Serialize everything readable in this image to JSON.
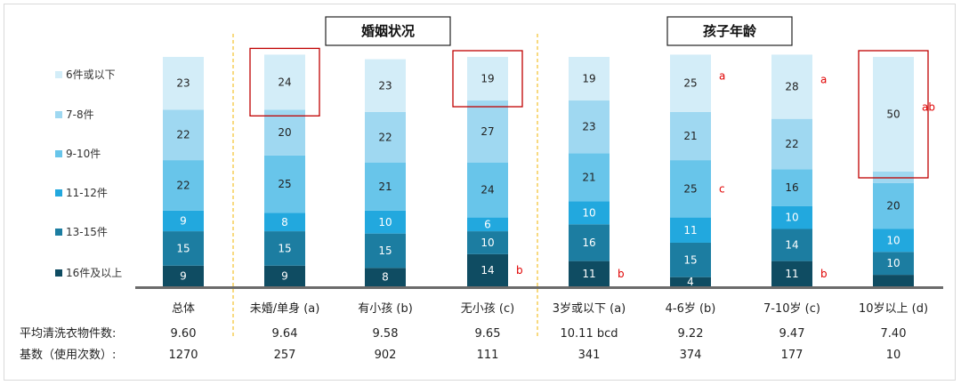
{
  "chart_data": {
    "type": "bar",
    "stacked": true,
    "grid": false,
    "legend_position": "left",
    "categories": [
      "总体",
      "未婚/单身 (a)",
      "有小孩 (b)",
      "无小孩 (c)",
      "3岁或以下 (a)",
      "4-6岁 (b)",
      "7-10岁 (c)",
      "10岁以上 (d)"
    ],
    "groups": [
      {
        "title": "婚姻状况",
        "categories": [
          1,
          3
        ]
      },
      {
        "title": "孩子年龄",
        "categories": [
          4,
          7
        ]
      }
    ],
    "series": [
      {
        "name": "16件及以上",
        "color": "#0f4c62",
        "values": [
          9,
          9,
          8,
          14,
          11,
          4,
          11,
          null
        ]
      },
      {
        "name": "13-15件",
        "color": "#1c7da1",
        "values": [
          15,
          15,
          15,
          10,
          16,
          15,
          14,
          10
        ]
      },
      {
        "name": "11-12件",
        "color": "#22a8de",
        "values": [
          9,
          8,
          10,
          6,
          10,
          11,
          10,
          10
        ]
      },
      {
        "name": "9-10件",
        "color": "#68c5ea",
        "values": [
          22,
          25,
          21,
          24,
          21,
          25,
          16,
          20
        ]
      },
      {
        "name": "7-8件",
        "color": "#9fd8f1",
        "values": [
          22,
          20,
          22,
          27,
          23,
          21,
          22,
          null
        ]
      },
      {
        "name": "6件或以下",
        "color": "#d3edf8",
        "values": [
          23,
          24,
          23,
          19,
          19,
          25,
          28,
          50
        ]
      }
    ],
    "significance": [
      {
        "category": 3,
        "series": 0,
        "text": "b"
      },
      {
        "category": 4,
        "series": 0,
        "text": "b"
      },
      {
        "category": 6,
        "series": 0,
        "text": "b"
      },
      {
        "category": 5,
        "series": 3,
        "text": "c"
      },
      {
        "category": 5,
        "series": 5,
        "text": "a"
      },
      {
        "category": 6,
        "series": 5,
        "text": "a"
      },
      {
        "category": 7,
        "series": 5,
        "text": "ab"
      }
    ],
    "highlight_boxes": [
      {
        "category": 1,
        "series": 5
      },
      {
        "category": 3,
        "series": 5
      },
      {
        "category": 7,
        "series": 5
      }
    ],
    "rows": [
      {
        "title": "平均清洗衣物件数:",
        "values": [
          "9.60",
          "9.64",
          "9.58",
          "9.65",
          "10.11 bcd",
          "9.22",
          "9.47",
          "7.40"
        ],
        "highlight": [
          4
        ]
      },
      {
        "title": "基数（使用次数）:",
        "values": [
          "1270",
          "257",
          "902",
          "111",
          "341",
          "374",
          "177",
          "10"
        ],
        "highlight": []
      }
    ],
    "colors": {
      "axis": "#6b6b6b",
      "divider": "#f0b400",
      "box": "#c00000",
      "significant": "#e00000"
    }
  }
}
